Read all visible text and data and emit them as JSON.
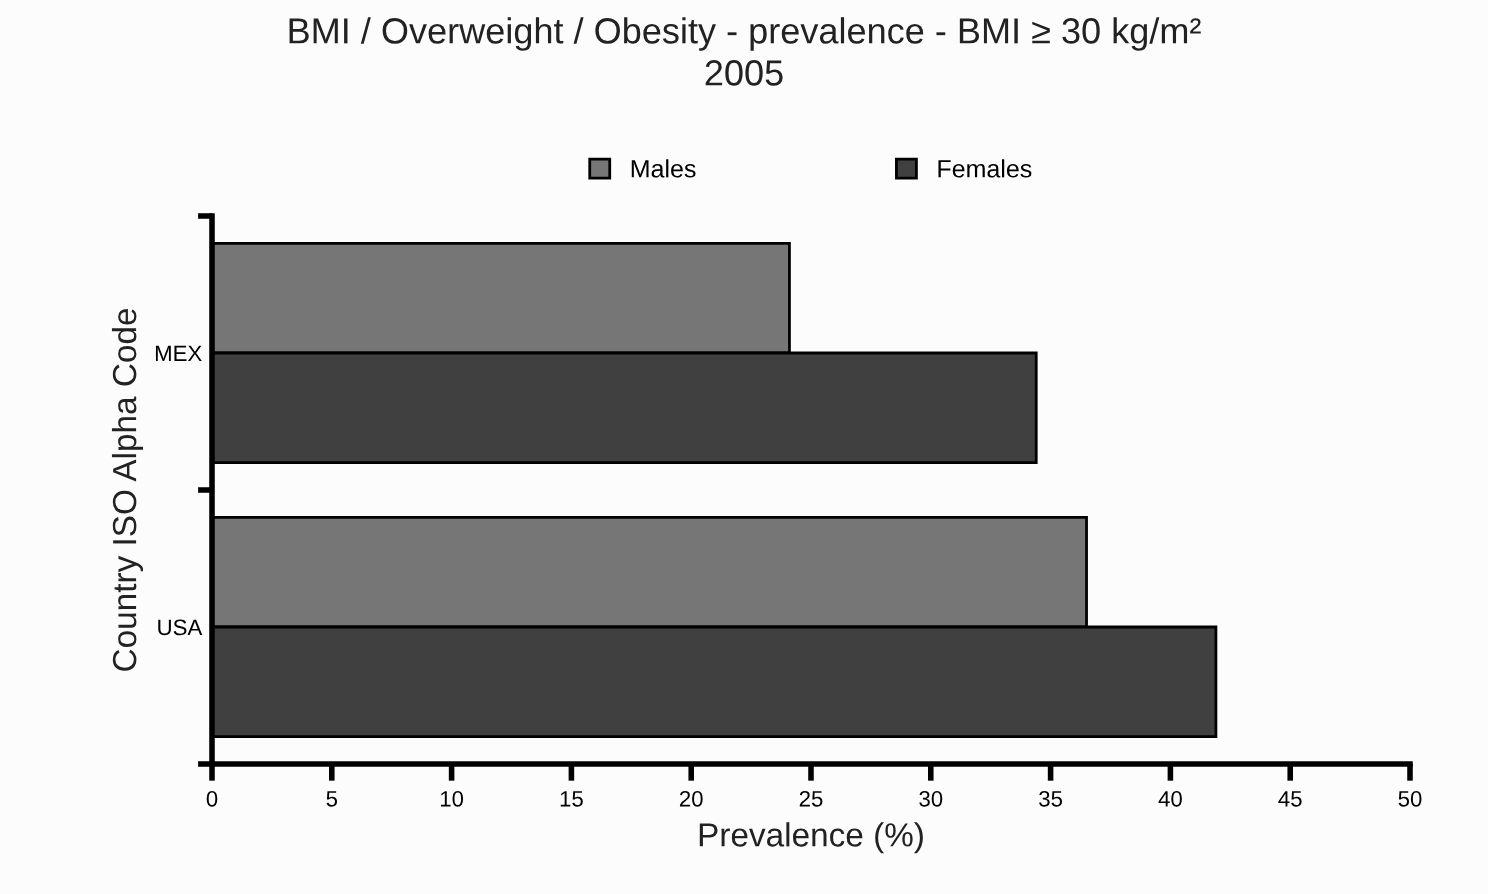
{
  "chart_data": {
    "type": "bar",
    "orientation": "horizontal",
    "title": "BMI / Overweight / Obesity - prevalence - BMI ≥ 30 kg/m²",
    "subtitle": "2005",
    "xlabel": "Prevalence (%)",
    "ylabel": "Country ISO Alpha Code",
    "categories": [
      "MEX",
      "USA"
    ],
    "series": [
      {
        "name": "Males",
        "color": "#767676",
        "values": [
          24.1,
          36.5
        ]
      },
      {
        "name": "Females",
        "color": "#404040",
        "values": [
          34.4,
          41.9
        ]
      }
    ],
    "xlim": [
      0,
      50
    ],
    "xticks": [
      0,
      5,
      10,
      15,
      20,
      25,
      30,
      35,
      40,
      45,
      50
    ],
    "grid": false,
    "legend": "top"
  }
}
